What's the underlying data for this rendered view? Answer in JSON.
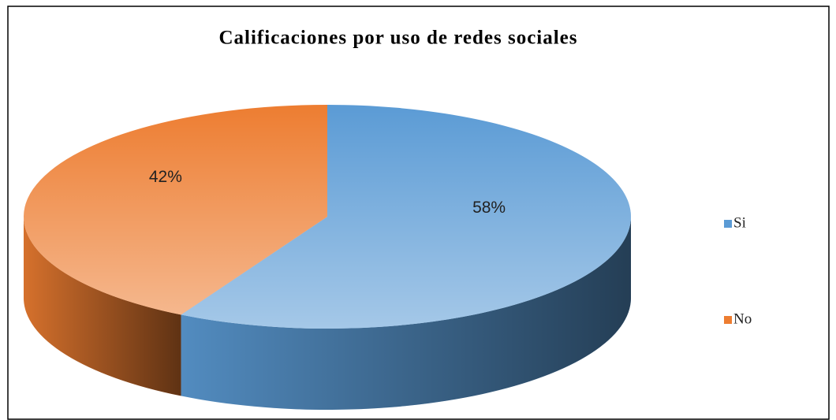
{
  "chart_data": {
    "type": "pie",
    "title": "Calificaciones por uso de redes sociales",
    "categories": [
      "Si",
      "No"
    ],
    "values": [
      58,
      42
    ],
    "value_labels": [
      "58%",
      "42%"
    ],
    "colors": [
      "#5b9bd5",
      "#ed7d31"
    ],
    "legend": "right"
  }
}
